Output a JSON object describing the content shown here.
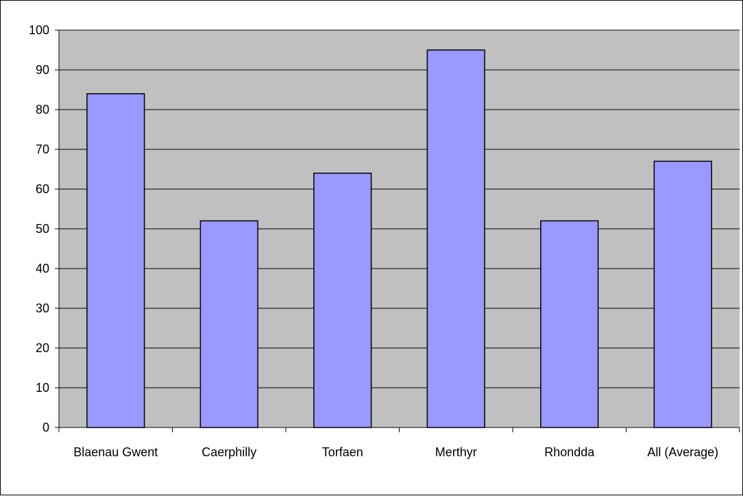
{
  "colors": {
    "plot_background": "#c0c0c0",
    "bar_fill": "#9999ff",
    "bar_stroke": "#000000",
    "gridline": "#000000",
    "axis": "#000000"
  },
  "chart_data": {
    "type": "bar",
    "categories": [
      "Blaenau Gwent",
      "Caerphilly",
      "Torfaen",
      "Merthyr",
      "Rhondda",
      "All (Average)"
    ],
    "values": [
      84,
      52,
      64,
      95,
      52,
      67
    ],
    "title": "",
    "xlabel": "",
    "ylabel": "",
    "ylim": [
      0,
      100
    ],
    "yticks": [
      0,
      10,
      20,
      30,
      40,
      50,
      60,
      70,
      80,
      90,
      100
    ],
    "grid": true,
    "legend": "none"
  }
}
